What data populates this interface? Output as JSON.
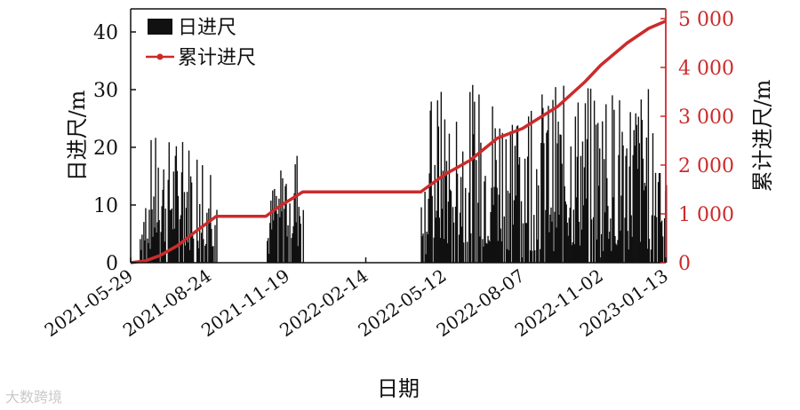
{
  "chart_data": {
    "type": "bar+line",
    "xlabel": "日期",
    "ylabel_left": "日进尺/m",
    "ylabel_right": "累计进尺/m",
    "ylim_left": [
      0,
      44
    ],
    "ylim_right": [
      0,
      5200
    ],
    "yticks_left": [
      0,
      10,
      20,
      30,
      40
    ],
    "yticks_right": [
      0,
      1000,
      2000,
      3000,
      4000,
      5000
    ],
    "ytick_labels_right": [
      "0",
      "1 000",
      "2 000",
      "3 000",
      "4 000",
      "5 000"
    ],
    "x_range": [
      "2021-05-29",
      "2023-01-13"
    ],
    "x_ticks": [
      "2021-05-29",
      "2021-08-24",
      "2021-11-19",
      "2022-02-14",
      "2022-05-12",
      "2022-08-07",
      "2022-11-02",
      "2023-01-13"
    ],
    "legend": {
      "position": "top-left",
      "entries": [
        "日进尺",
        "累计进尺"
      ]
    },
    "colors": {
      "bars": "#111111",
      "line": "#cc2b2b",
      "right_axis": "#cc2b2b"
    },
    "series": [
      {
        "name": "日进尺",
        "type": "bar",
        "active_periods": [
          {
            "start": "2021-06-08",
            "end": "2021-09-01",
            "typical_range": [
              2,
              22
            ],
            "peak": 22
          },
          {
            "start": "2021-10-27",
            "end": "2021-12-06",
            "typical_range": [
              2,
              21
            ],
            "peak": 21
          },
          {
            "start": "2022-04-16",
            "end": "2023-01-13",
            "typical_range": [
              2,
              31
            ],
            "peak": 31
          }
        ]
      },
      {
        "name": "累计进尺",
        "type": "line",
        "points": [
          {
            "date": "2021-05-29",
            "value": 0
          },
          {
            "date": "2021-06-15",
            "value": 40
          },
          {
            "date": "2021-07-01",
            "value": 150
          },
          {
            "date": "2021-07-20",
            "value": 350
          },
          {
            "date": "2021-08-10",
            "value": 650
          },
          {
            "date": "2021-09-01",
            "value": 950
          },
          {
            "date": "2021-10-26",
            "value": 950
          },
          {
            "date": "2021-11-10",
            "value": 1150
          },
          {
            "date": "2021-12-06",
            "value": 1450
          },
          {
            "date": "2022-04-16",
            "value": 1450
          },
          {
            "date": "2022-05-12",
            "value": 1800
          },
          {
            "date": "2022-06-10",
            "value": 2100
          },
          {
            "date": "2022-07-10",
            "value": 2550
          },
          {
            "date": "2022-08-07",
            "value": 2750
          },
          {
            "date": "2022-09-15",
            "value": 3200
          },
          {
            "date": "2022-10-15",
            "value": 3700
          },
          {
            "date": "2022-11-02",
            "value": 4050
          },
          {
            "date": "2022-12-01",
            "value": 4500
          },
          {
            "date": "2022-12-25",
            "value": 4800
          },
          {
            "date": "2023-01-13",
            "value": 4950
          }
        ]
      }
    ]
  },
  "watermark": "大数跨境"
}
